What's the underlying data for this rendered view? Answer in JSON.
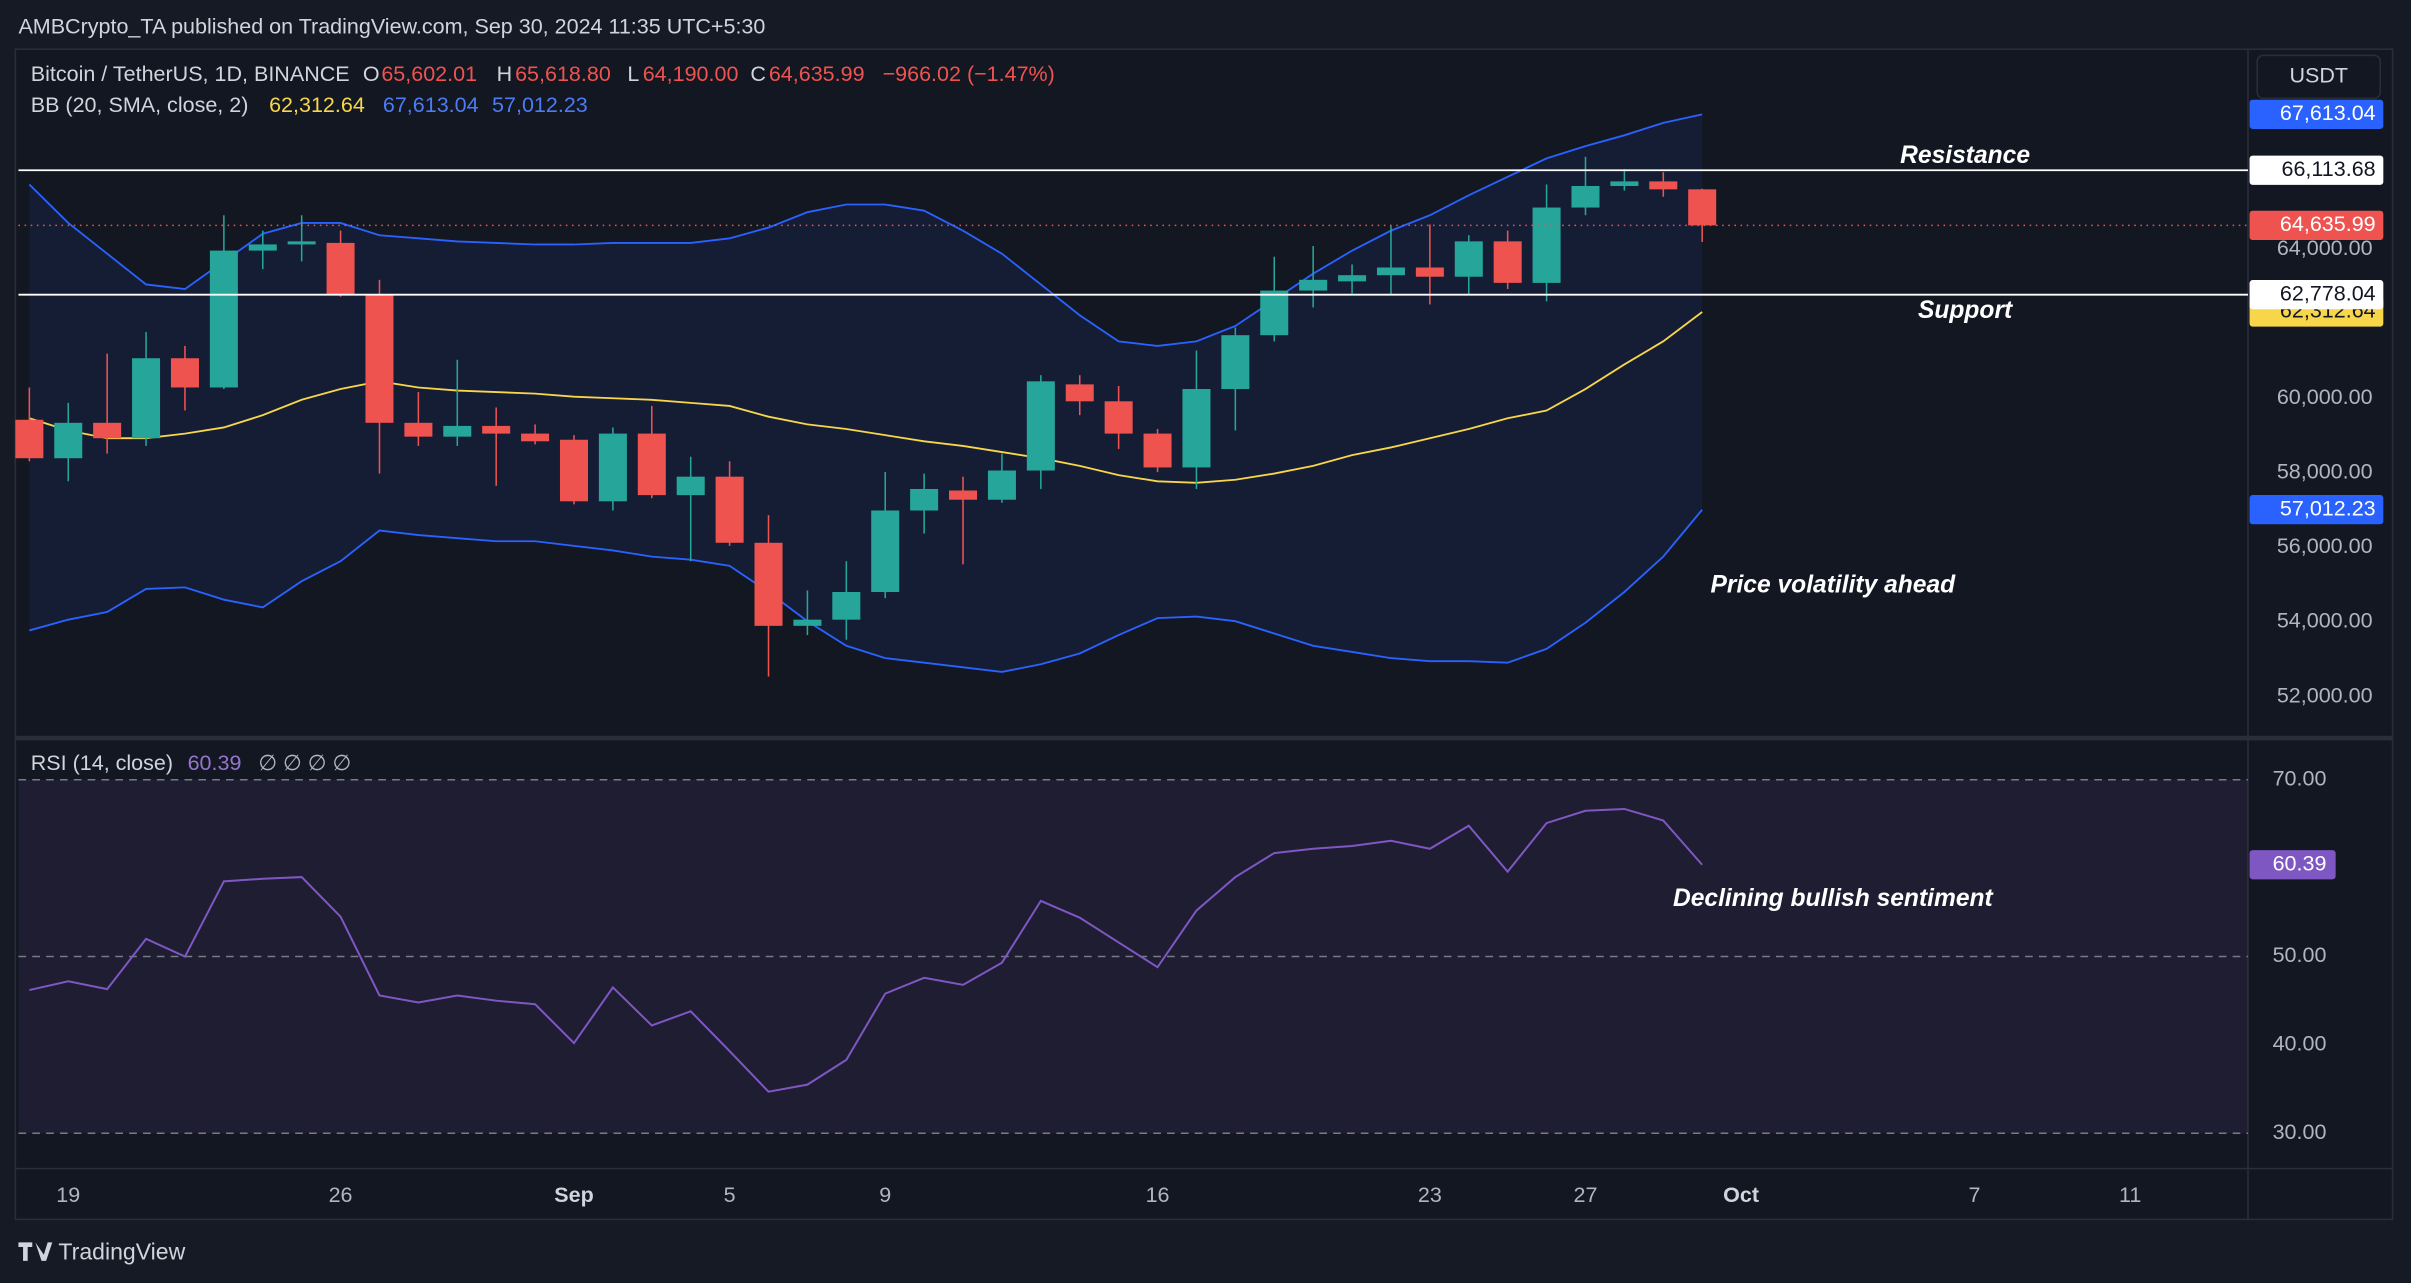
{
  "header": "AMBCrypto_TA published on TradingView.com, Sep 30, 2024 11:35 UTC+5:30",
  "currency": "USDT",
  "brand": "TradingView",
  "chart_data": [
    {
      "type": "candlestick",
      "title": "Bitcoin / TetherUS, 1D, BINANCE",
      "legend": [
        {
          "key": "O",
          "label": "65,602.01"
        },
        {
          "key": "H",
          "label": "65,618.80"
        },
        {
          "key": "L",
          "label": "64,190.00"
        },
        {
          "key": "C",
          "label": "64,635.99"
        }
      ],
      "change_label": "−966.02 (−1.47%)",
      "up_color": "#26a69a",
      "down_color": "#ef5350",
      "open": [
        59423,
        58392,
        59341,
        58928,
        61073,
        60289,
        63960,
        64125,
        64166,
        62764,
        59341,
        58970,
        59258,
        59052,
        58887,
        57237,
        59052,
        57402,
        57897,
        56124,
        53897,
        54062,
        54804,
        56990,
        57526,
        57279,
        58062,
        60372,
        59918,
        59052,
        58145,
        60248,
        61691,
        62887,
        63135,
        63300,
        63506,
        63259,
        64207,
        63094,
        65114,
        65692,
        65815,
        65602.01
      ],
      "high": [
        60289,
        59877,
        61197,
        61774,
        61403,
        64908,
        64496,
        64908,
        64496,
        63176,
        60166,
        61032,
        59753,
        59299,
        59011,
        59217,
        59794,
        58433,
        58310,
        56866,
        54846,
        55629,
        58021,
        57980,
        57897,
        58516,
        60619,
        60619,
        60330,
        59176,
        61279,
        61898,
        63795,
        64083,
        63588,
        64619,
        64661,
        64372,
        64496,
        65733,
        66475,
        66145,
        66063,
        65618.8
      ],
      "low": [
        58310,
        57774,
        58516,
        58722,
        59671,
        60247,
        63465,
        63671,
        62722,
        57980,
        58722,
        58722,
        57650,
        58763,
        57155,
        56990,
        57320,
        55629,
        56042,
        52536,
        53650,
        53526,
        54639,
        56371,
        55547,
        57196,
        57567,
        59547,
        58640,
        58021,
        57567,
        59135,
        61526,
        62434,
        62805,
        62764,
        62516,
        62764,
        62929,
        62599,
        64908,
        65568,
        65403,
        64190
      ],
      "close": [
        58392,
        59341,
        58928,
        61073,
        60289,
        63960,
        64125,
        64207,
        62764,
        59341,
        58970,
        59258,
        59052,
        58846,
        57237,
        59052,
        57402,
        57897,
        56124,
        53897,
        54062,
        54804,
        56990,
        57567,
        57279,
        58062,
        60454,
        59918,
        59052,
        58145,
        60248,
        61691,
        62887,
        63176,
        63300,
        63506,
        63259,
        64207,
        63094,
        65114,
        65692,
        65815,
        65602,
        64635.99
      ],
      "close_label": "64,635.99",
      "bands": {
        "name": "BB (20, SMA, close, 2)",
        "fill": "rgba(41,98,255,0.09)",
        "series": [
          {
            "color": "#f7d64a",
            "last_label": "62,312.64",
            "values": [
              59464,
              59135,
              58928,
              58928,
              59052,
              59217,
              59547,
              59959,
              60248,
              60454,
              60289,
              60207,
              60166,
              60124,
              60042,
              60001,
              59959,
              59877,
              59794,
              59506,
              59299,
              59176,
              59011,
              58846,
              58722,
              58557,
              58392,
              58186,
              57939,
              57774,
              57732,
              57815,
              57980,
              58186,
              58475,
              58681,
              58928,
              59176,
              59464,
              59671,
              60248,
              60908,
              61526,
              62312.64
            ]
          },
          {
            "color": "#2962ff",
            "last_label": "67,613.04",
            "values": [
              65733,
              64702,
              63877,
              63052,
              62929,
              63671,
              64413,
              64702,
              64702,
              64372,
              64290,
              64207,
              64166,
              64125,
              64125,
              64166,
              64166,
              64166,
              64290,
              64578,
              64991,
              65197,
              65197,
              65032,
              64496,
              63877,
              63052,
              62228,
              61526,
              61403,
              61526,
              61939,
              62640,
              63341,
              63960,
              64496,
              64908,
              65444,
              65939,
              66434,
              66764,
              67053,
              67383,
              67613.04
            ]
          },
          {
            "color": "#2962ff",
            "last_label": "57,012.23",
            "values": [
              53773,
              54062,
              54268,
              54887,
              54928,
              54598,
              54392,
              55093,
              55629,
              56454,
              56330,
              56248,
              56165,
              56165,
              56042,
              55918,
              55753,
              55670,
              55505,
              54804,
              54021,
              53361,
              53031,
              52907,
              52784,
              52660,
              52866,
              53155,
              53650,
              54103,
              54144,
              54021,
              53691,
              53361,
              53196,
              53031,
              52949,
              52949,
              52907,
              53278,
              53980,
              54804,
              55753,
              57012.23
            ]
          }
        ]
      },
      "levels": [
        {
          "name": "Resistance",
          "value": 66113.68,
          "label": "66,113.68"
        },
        {
          "name": "Support",
          "value": 62778.04,
          "label": "62,778.04"
        }
      ],
      "annotation": "Price volatility ahead",
      "xlim": [
        -0.28,
        57.03
      ],
      "ylim": [
        50970,
        69360
      ],
      "yticks": [
        {
          "value": 52000,
          "label": "52,000.00"
        },
        {
          "value": 54000,
          "label": "54,000.00"
        },
        {
          "value": 56000,
          "label": "56,000.00"
        },
        {
          "value": 58000,
          "label": "58,000.00"
        },
        {
          "value": 60000,
          "label": "60,000.00"
        },
        {
          "value": 64000,
          "label": "64,000.00"
        }
      ],
      "grid": false
    },
    {
      "type": "line",
      "title": "RSI (14, close)",
      "status": "∅ ∅ ∅ ∅",
      "color": "#7e57c2",
      "values": [
        46.2,
        47.2,
        46.3,
        52,
        50,
        58.5,
        58.8,
        59,
        54.5,
        45.6,
        44.8,
        45.6,
        45,
        44.6,
        40.2,
        46.5,
        42.2,
        43.8,
        39.3,
        34.7,
        35.5,
        38.3,
        45.8,
        47.6,
        46.8,
        49.3,
        56.3,
        54.4,
        51.6,
        48.8,
        55.2,
        59,
        61.7,
        62.2,
        62.5,
        63.1,
        62.2,
        64.8,
        59.6,
        65.1,
        66.5,
        66.7,
        65.4,
        60.39
      ],
      "levels": [
        30,
        50,
        70
      ],
      "annotation": "Declining bullish sentiment",
      "xlim": [
        -0.28,
        57.03
      ],
      "ylim": [
        26,
        74.2
      ],
      "yticks": [
        {
          "value": 30,
          "label": "30.00"
        },
        {
          "value": 40,
          "label": "40.00"
        },
        {
          "value": 50,
          "label": "50.00"
        },
        {
          "value": 70,
          "label": "70.00"
        }
      ],
      "xticks": [
        {
          "value": 1,
          "label": "19"
        },
        {
          "value": 8,
          "label": "26"
        },
        {
          "value": 14,
          "label": "Sep"
        },
        {
          "value": 18,
          "label": "5"
        },
        {
          "value": 22,
          "label": "9"
        },
        {
          "value": 29,
          "label": "16"
        },
        {
          "value": 36,
          "label": "23"
        },
        {
          "value": 40,
          "label": "27"
        },
        {
          "value": 44,
          "label": "Oct"
        },
        {
          "value": 50,
          "label": "7"
        },
        {
          "value": 54,
          "label": "11"
        }
      ],
      "grid": false
    }
  ]
}
